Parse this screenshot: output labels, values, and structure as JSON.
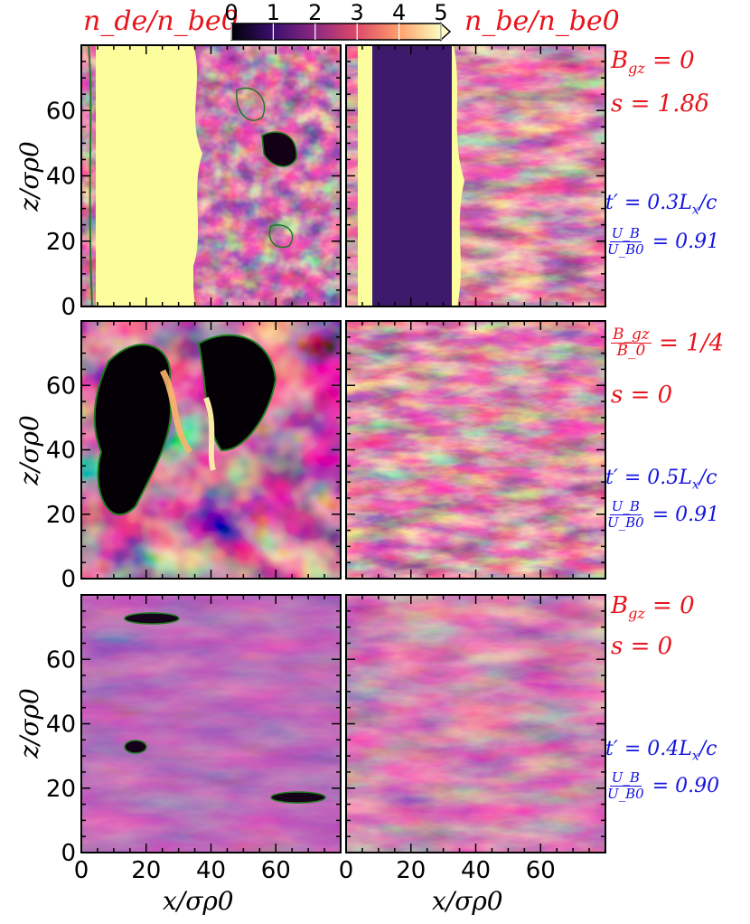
{
  "colorbar": {
    "ticks": [
      "0",
      "1",
      "2",
      "3",
      "4",
      "5"
    ],
    "vmin": 0,
    "vmax": 5,
    "colormap": "inferno-like",
    "extend": "max"
  },
  "titles": {
    "left": "n_de/n_be0",
    "right": "n_be/n_be0"
  },
  "chart_data": {
    "type": "heatmap",
    "xlabel": "x/σρ0",
    "ylabel": "z/σρ0",
    "xlim": [
      0,
      80
    ],
    "ylim": [
      0,
      80
    ],
    "x_ticks": [
      "0",
      "20",
      "40",
      "60"
    ],
    "y_ticks": [
      "0",
      "20",
      "40",
      "60"
    ],
    "contour_color": "#1f7a1f",
    "rows": [
      {
        "params": [
          "B_gz = 0",
          "s = 1.8δ"
        ],
        "time": "t′ = 0.3L_x/c",
        "energy_ratio": "U_B/U_B0 = 0.91",
        "energy_value": 0.91,
        "time_value": 0.3,
        "description_left": "dense strip 5<x<33, turbulent region x>33",
        "description_right": "bright strip 0<x<8, dark band 8<x<33, turbulent x>33"
      },
      {
        "params": [
          "B_gz/B_0 = 1/4",
          "s = 0"
        ],
        "time": "t′ = 0.5L_x/c",
        "energy_ratio": "U_B/U_B0 = 0.91",
        "energy_value": 0.91,
        "time_value": 0.5
      },
      {
        "params": [
          "B_gz = 0",
          "s = 0"
        ],
        "time": "t′ = 0.4L_x/c",
        "energy_ratio": "U_B/U_B0 = 0.90",
        "energy_value": 0.9,
        "time_value": 0.4
      }
    ]
  },
  "row_labels": [
    {
      "p1_sym": "B",
      "p1_sub": "gz",
      "p1_val": "= 0",
      "p2": "s = 1.8δ",
      "t_pre": "t′ = 0.3L",
      "t_sub": "x",
      "t_post": "/c",
      "ub_num": "U_B",
      "ub_den": "U_B0",
      "ub_val": "= 0.91"
    },
    {
      "p1_num": "B_gz",
      "p1_den": "B_0",
      "p1_val": "= 1/4",
      "p2": "s = 0",
      "t_pre": "t′ = 0.5L",
      "t_sub": "x",
      "t_post": "/c",
      "ub_num": "U_B",
      "ub_den": "U_B0",
      "ub_val": "= 0.91"
    },
    {
      "p1_sym": "B",
      "p1_sub": "gz",
      "p1_val": "= 0",
      "p2": "s = 0",
      "t_pre": "t′ = 0.4L",
      "t_sub": "x",
      "t_post": "/c",
      "ub_num": "U_B",
      "ub_den": "U_B0",
      "ub_val": "= 0.90"
    }
  ]
}
